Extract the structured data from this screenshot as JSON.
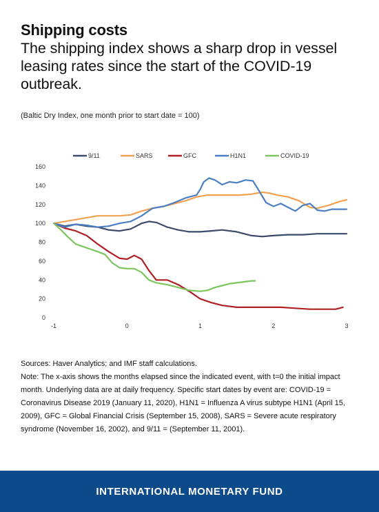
{
  "header": {
    "kicker": "Shipping costs",
    "headline": "The shipping index shows a sharp drop in vessel leasing rates since the start of the COVID-19 outbreak.",
    "subtitle": "(Baltic Dry Index, one month prior to start date = 100)"
  },
  "chart_data": {
    "type": "line",
    "xlim": [
      -1,
      3
    ],
    "ylim": [
      0,
      160
    ],
    "x_ticks": [
      -1,
      0,
      1,
      2,
      3
    ],
    "y_ticks": [
      0,
      20,
      40,
      60,
      80,
      100,
      120,
      140,
      160
    ],
    "grid": false,
    "legend": "top",
    "series": [
      {
        "name": "9/11",
        "color": "#3a4a6b",
        "x": [
          -1,
          -0.85,
          -0.7,
          -0.55,
          -0.4,
          -0.25,
          -0.1,
          0.05,
          0.2,
          0.3,
          0.4,
          0.55,
          0.7,
          0.85,
          1.0,
          1.15,
          1.3,
          1.5,
          1.7,
          1.85,
          2.0,
          2.2,
          2.4,
          2.6,
          2.8,
          3.0
        ],
        "y": [
          100,
          97,
          99,
          97,
          96,
          93,
          92,
          94,
          100,
          102,
          101,
          96,
          93,
          91,
          91,
          92,
          93,
          91,
          87,
          86,
          87,
          88,
          88,
          89,
          89,
          89
        ]
      },
      {
        "name": "SARS",
        "color": "#f0a050",
        "x": [
          -1,
          -0.85,
          -0.7,
          -0.55,
          -0.4,
          -0.25,
          -0.1,
          0.05,
          0.2,
          0.35,
          0.5,
          0.65,
          0.8,
          0.95,
          1.1,
          1.25,
          1.4,
          1.55,
          1.7,
          1.85,
          1.95,
          2.05,
          2.2,
          2.35,
          2.5,
          2.6,
          2.75,
          2.9,
          3.0
        ],
        "y": [
          100,
          102,
          104,
          106,
          108,
          108,
          108,
          109,
          113,
          116,
          118,
          121,
          124,
          128,
          130,
          130,
          130,
          130,
          131,
          133,
          132,
          130,
          128,
          124,
          117,
          116,
          119,
          123,
          125
        ]
      },
      {
        "name": "GFC",
        "color": "#b01f24",
        "x": [
          -1,
          -0.85,
          -0.7,
          -0.55,
          -0.4,
          -0.25,
          -0.1,
          0.0,
          0.1,
          0.2,
          0.3,
          0.4,
          0.55,
          0.7,
          0.85,
          1.0,
          1.15,
          1.3,
          1.5,
          1.7,
          1.9,
          2.1,
          2.3,
          2.5,
          2.7,
          2.85,
          2.95
        ],
        "y": [
          100,
          95,
          92,
          87,
          78,
          70,
          63,
          62,
          66,
          62,
          50,
          40,
          40,
          35,
          28,
          20,
          16,
          13,
          11,
          11,
          11,
          11,
          10,
          9,
          9,
          9,
          11
        ]
      },
      {
        "name": "H1N1",
        "color": "#4a7fc4",
        "x": [
          -1,
          -0.85,
          -0.7,
          -0.55,
          -0.4,
          -0.25,
          -0.1,
          0.05,
          0.2,
          0.35,
          0.5,
          0.65,
          0.8,
          0.95,
          1.0,
          1.05,
          1.12,
          1.2,
          1.3,
          1.4,
          1.5,
          1.62,
          1.72,
          1.8,
          1.9,
          2.0,
          2.1,
          2.2,
          2.3,
          2.4,
          2.5,
          2.6,
          2.7,
          2.8,
          2.9,
          3.0
        ],
        "y": [
          100,
          96,
          99,
          98,
          96,
          97,
          100,
          102,
          108,
          116,
          118,
          122,
          127,
          130,
          136,
          144,
          148,
          146,
          141,
          144,
          143,
          146,
          145,
          135,
          122,
          118,
          121,
          117,
          113,
          119,
          121,
          114,
          113,
          115,
          115,
          115
        ]
      },
      {
        "name": "COVID-19",
        "color": "#7cc45e",
        "x": [
          -1,
          -0.9,
          -0.8,
          -0.7,
          -0.55,
          -0.4,
          -0.3,
          -0.2,
          -0.1,
          0.0,
          0.1,
          0.2,
          0.3,
          0.4,
          0.55,
          0.7,
          0.85,
          1.0,
          1.1,
          1.2,
          1.3,
          1.4,
          1.5,
          1.6,
          1.7,
          1.75
        ],
        "y": [
          100,
          93,
          85,
          78,
          74,
          70,
          67,
          58,
          53,
          52,
          52,
          48,
          40,
          37,
          35,
          32,
          29,
          28,
          29,
          32,
          34,
          36,
          37,
          38,
          39,
          39
        ]
      }
    ]
  },
  "notes": {
    "sources": "Sources: Haver Analytics; and IMF staff calculations.",
    "note": "Note: The x-axis shows the months elapsed since the indicated event, with t=0 the initial impact month. Underlying data are at daily frequency. Specific start dates by event are: COVID-19 = Coronavirus Disease 2019 (January 11, 2020), H1N1 = Influenza A virus subtype H1N1 (April 15, 2009), GFC = Global Financial Crisis (September 15, 2008), SARS = Severe acute respiratory syndrome (November 16, 2002), and 9/11 = (September 11, 2001)."
  },
  "footer": {
    "label": "INTERNATIONAL MONETARY FUND"
  }
}
